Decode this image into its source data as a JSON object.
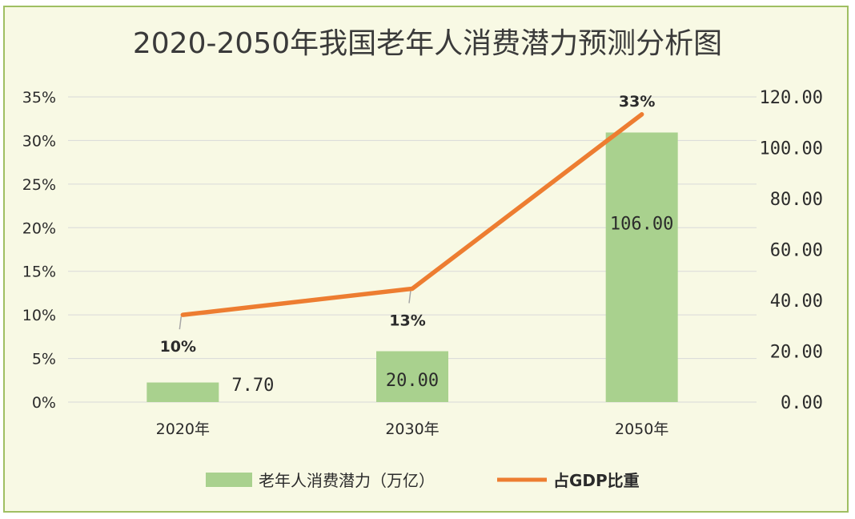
{
  "chart_data": {
    "type": "bar+line",
    "title": "2020-2050年我国老年人消费潜力预测分析图",
    "categories": [
      "2020年",
      "2030年",
      "2050年"
    ],
    "series": [
      {
        "name": "老年人消费潜力（万亿）",
        "type": "bar",
        "axis": "right",
        "values": [
          7.7,
          20.0,
          106.0
        ],
        "labels": [
          "7.70",
          "20.00",
          "106.00"
        ],
        "color": "#a9d18e"
      },
      {
        "name": "占GDP比重",
        "type": "line",
        "axis": "left",
        "values": [
          10,
          13,
          33
        ],
        "labels": [
          "10%",
          "13%",
          "33%"
        ],
        "color": "#ed7d31"
      }
    ],
    "y_left": {
      "ticks": [
        "0%",
        "5%",
        "10%",
        "15%",
        "20%",
        "25%",
        "30%",
        "35%"
      ],
      "range": [
        0,
        35
      ]
    },
    "y_right": {
      "ticks": [
        "0.00",
        "20.00",
        "40.00",
        "60.00",
        "80.00",
        "100.00",
        "120.00"
      ],
      "range": [
        0,
        120
      ]
    },
    "grid": true,
    "legend": "bottom"
  },
  "colors": {
    "background": "#f8f9e4",
    "border": "#9fbf62",
    "grid": "#d9d9d9"
  }
}
